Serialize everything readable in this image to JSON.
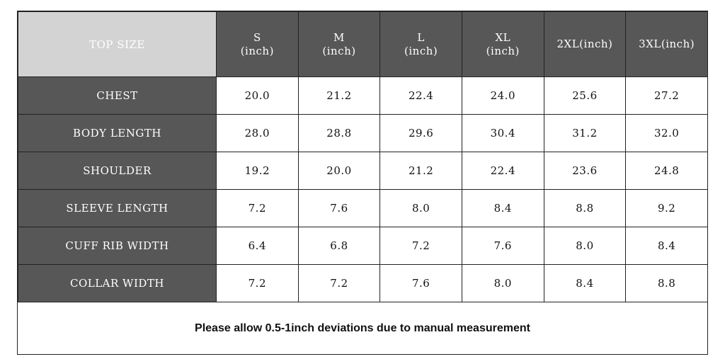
{
  "table": {
    "corner_label": "TOP SIZE",
    "columns": [
      {
        "size": "S",
        "unit": "(inch)"
      },
      {
        "size": "M",
        "unit": "(inch)"
      },
      {
        "size": "L",
        "unit": "(inch)"
      },
      {
        "size": "XL",
        "unit": "(inch)"
      },
      {
        "size": "2XL(inch)",
        "unit": ""
      },
      {
        "size": "3XL(inch)",
        "unit": ""
      }
    ],
    "rows": [
      {
        "label": "CHEST",
        "values": [
          "20.0",
          "21.2",
          "22.4",
          "24.0",
          "25.6",
          "27.2"
        ]
      },
      {
        "label": "BODY LENGTH",
        "values": [
          "28.0",
          "28.8",
          "29.6",
          "30.4",
          "31.2",
          "32.0"
        ]
      },
      {
        "label": "SHOULDER",
        "values": [
          "19.2",
          "20.0",
          "21.2",
          "22.4",
          "23.6",
          "24.8"
        ]
      },
      {
        "label": "SLEEVE LENGTH",
        "values": [
          "7.2",
          "7.6",
          "8.0",
          "8.4",
          "8.8",
          "9.2"
        ]
      },
      {
        "label": "CUFF RIB WIDTH",
        "values": [
          "6.4",
          "6.8",
          "7.2",
          "7.6",
          "8.0",
          "8.4"
        ]
      },
      {
        "label": "COLLAR WIDTH",
        "values": [
          "7.2",
          "7.2",
          "7.6",
          "8.0",
          "8.4",
          "8.8"
        ]
      }
    ]
  },
  "note": "Please allow 0.5-1inch deviations due to manual measurement",
  "colors": {
    "header_bg": "#575757",
    "corner_bg": "#d3d3d3",
    "cell_bg": "#ffffff"
  }
}
